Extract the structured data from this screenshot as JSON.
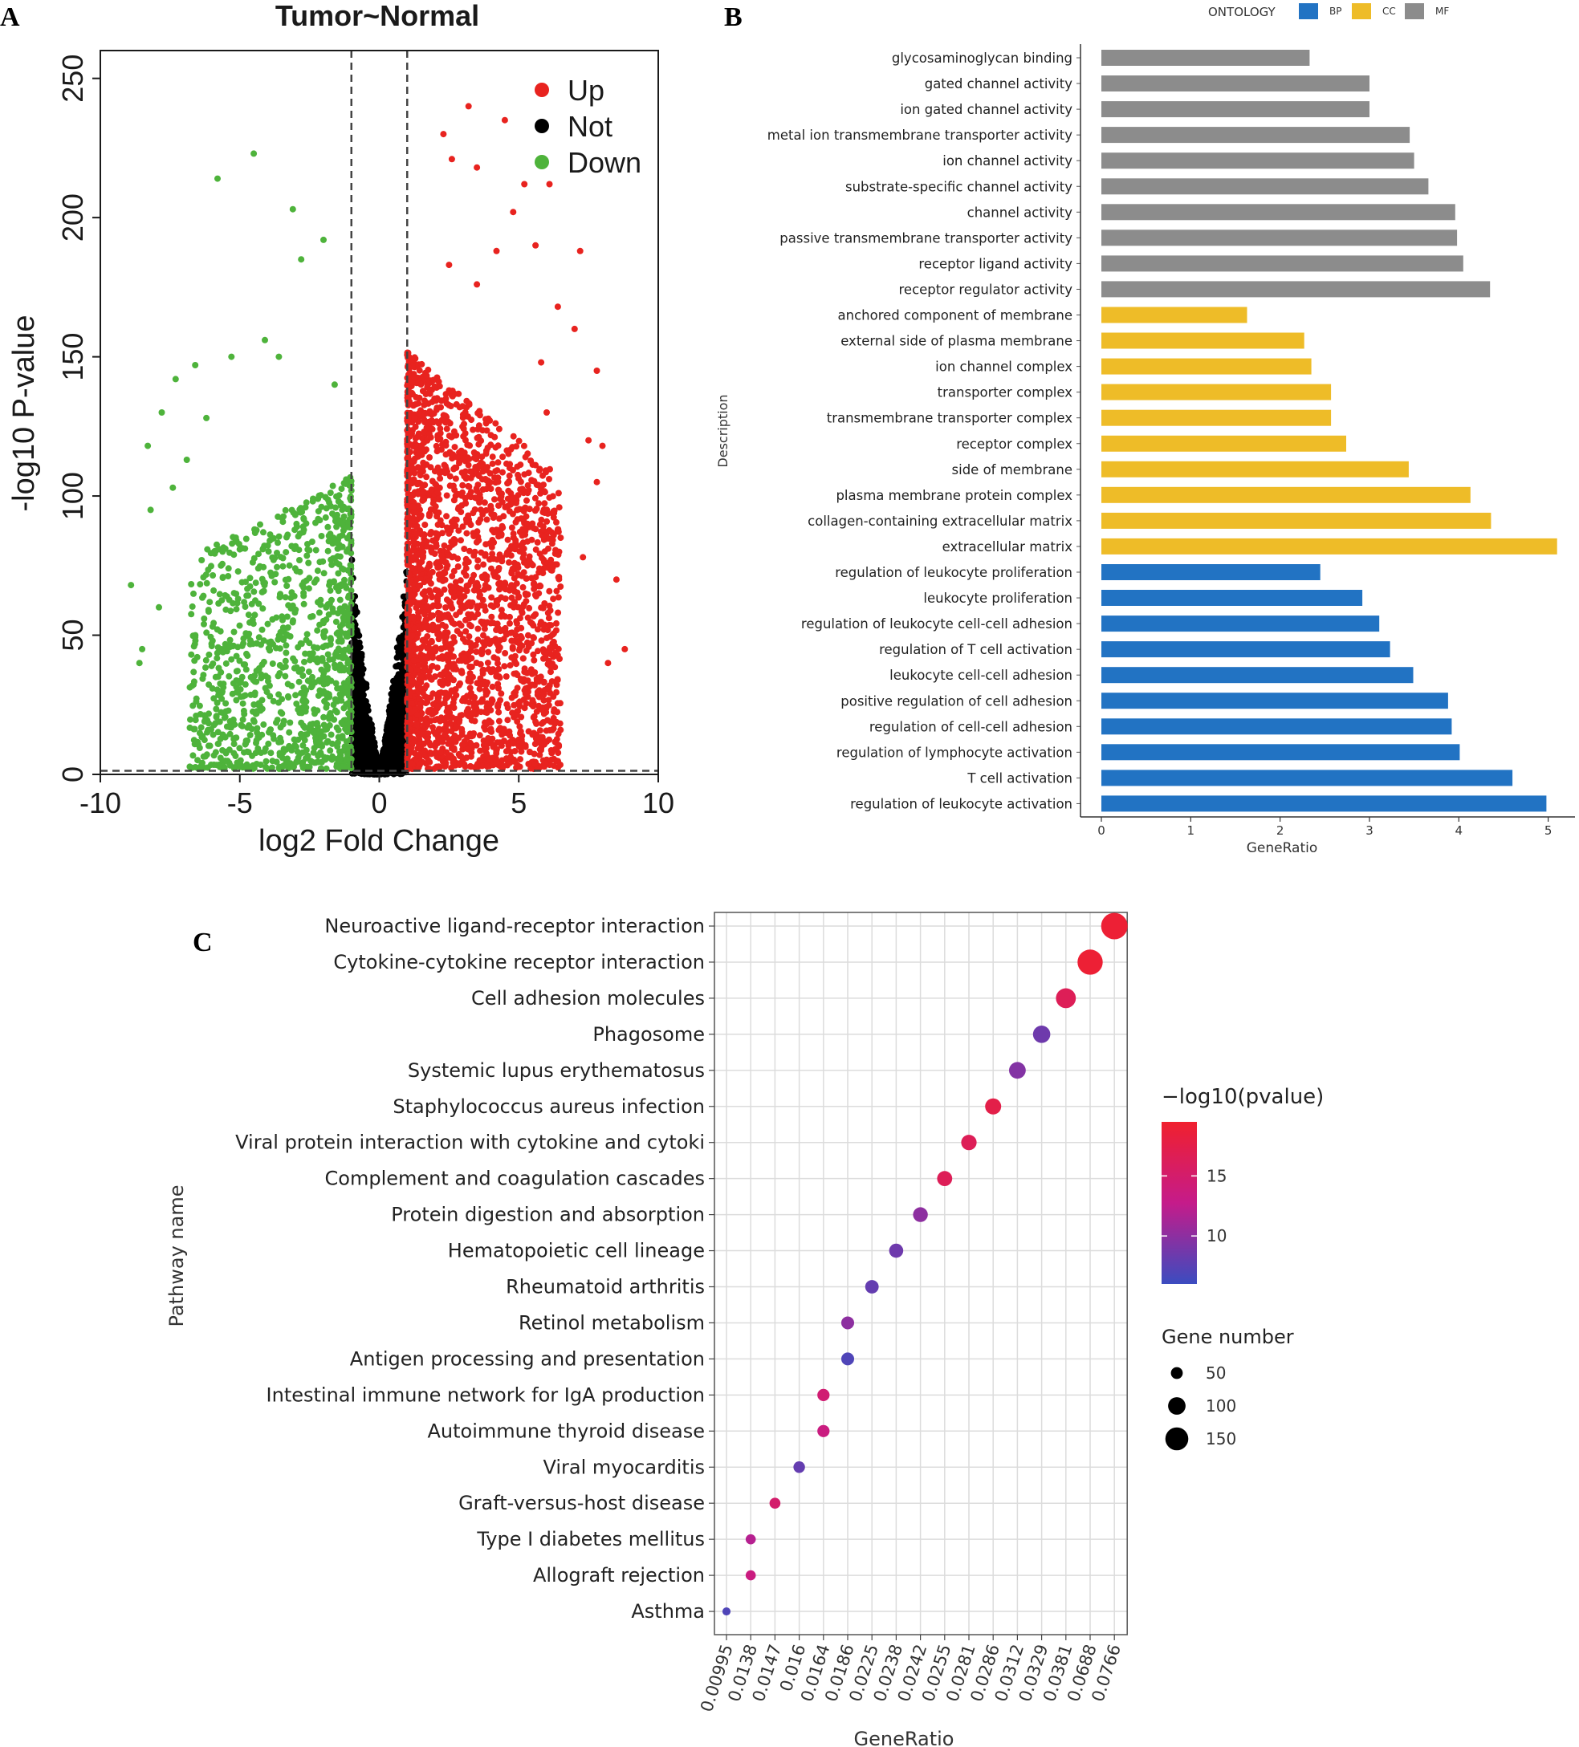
{
  "panels": {
    "a": "A",
    "b": "B",
    "c": "C"
  },
  "chart_data": [
    {
      "type": "scatter",
      "panel": "A",
      "title": "Tumor~Normal",
      "xlabel": "log2 Fold Change",
      "ylabel": "-log10 P-value",
      "xlim": [
        -10,
        10
      ],
      "ylim": [
        0,
        260
      ],
      "xticks": [
        -10,
        -5,
        0,
        5,
        10
      ],
      "yticks": [
        0,
        50,
        100,
        150,
        200,
        250
      ],
      "thresholds": {
        "log2fc": [
          -1,
          1
        ],
        "neg_log10_p": 1.3
      },
      "legend": {
        "position": "top-right",
        "items": [
          {
            "label": "Up",
            "color": "#e8231f"
          },
          {
            "label": "Not",
            "color": "#000000"
          },
          {
            "label": "Down",
            "color": "#4eb33b"
          }
        ]
      },
      "seed": 20231,
      "series_counts": {
        "Up": 2400,
        "Down": 1100,
        "Not": 1600
      },
      "notable_points": {
        "Up": [
          [
            3.2,
            240
          ],
          [
            2.3,
            230
          ],
          [
            4.5,
            235
          ],
          [
            2.6,
            221
          ],
          [
            3.5,
            218
          ],
          [
            5.2,
            212
          ],
          [
            6.1,
            212
          ],
          [
            4.8,
            202
          ],
          [
            5.6,
            190
          ],
          [
            7.2,
            188
          ],
          [
            4.2,
            188
          ],
          [
            2.5,
            183
          ],
          [
            3.5,
            176
          ],
          [
            6.4,
            168
          ],
          [
            7.0,
            160
          ],
          [
            5.8,
            148
          ],
          [
            7.8,
            145
          ],
          [
            6.0,
            130
          ],
          [
            7.5,
            120
          ],
          [
            8.0,
            118
          ],
          [
            7.8,
            105
          ],
          [
            8.5,
            70
          ],
          [
            8.8,
            45
          ],
          [
            8.2,
            40
          ],
          [
            6.5,
            85
          ],
          [
            7.3,
            78
          ]
        ],
        "Down": [
          [
            -4.5,
            223
          ],
          [
            -5.8,
            214
          ],
          [
            -3.1,
            203
          ],
          [
            -2.0,
            192
          ],
          [
            -2.8,
            185
          ],
          [
            -4.1,
            156
          ],
          [
            -6.6,
            147
          ],
          [
            -5.3,
            150
          ],
          [
            -7.3,
            142
          ],
          [
            -7.8,
            130
          ],
          [
            -8.3,
            118
          ],
          [
            -6.9,
            113
          ],
          [
            -7.4,
            103
          ],
          [
            -8.2,
            95
          ],
          [
            -8.9,
            68
          ],
          [
            -8.5,
            45
          ],
          [
            -8.6,
            40
          ],
          [
            -7.9,
            60
          ],
          [
            -6.2,
            128
          ],
          [
            -3.6,
            150
          ],
          [
            -1.6,
            140
          ]
        ]
      },
      "point_colors": {
        "Up": "#e8231f",
        "Not": "#000000",
        "Down": "#4eb33b"
      }
    },
    {
      "type": "bar",
      "panel": "B",
      "orientation": "horizontal",
      "xlabel": "GeneRatio",
      "ylabel": "Description",
      "xlim": [
        0,
        5.3
      ],
      "xticks": [
        0,
        1,
        2,
        3,
        4,
        5
      ],
      "legend_title": "ONTOLOGY",
      "legend": [
        {
          "label": "BP",
          "color": "#2273c3"
        },
        {
          "label": "CC",
          "color": "#eebc28"
        },
        {
          "label": "MF",
          "color": "#8c8c8c"
        }
      ],
      "categories": [
        "glycosaminoglycan binding",
        "gated channel activity",
        "ion gated channel activity",
        "metal ion transmembrane transporter activity",
        "ion channel activity",
        "substrate-specific channel activity",
        "channel activity",
        "passive transmembrane transporter activity",
        "receptor ligand activity",
        "receptor regulator activity",
        "anchored component of membrane",
        "external side of plasma membrane",
        "ion channel complex",
        "transporter complex",
        "transmembrane transporter complex",
        "receptor complex",
        "side of membrane",
        "plasma membrane protein complex",
        "collagen-containing extracellular matrix",
        "extracellular matrix",
        "regulation of leukocyte proliferation",
        "leukocyte proliferation",
        "regulation of leukocyte cell-cell adhesion",
        "regulation of T cell activation",
        "leukocyte cell-cell adhesion",
        "positive regulation of cell adhesion",
        "regulation of cell-cell adhesion",
        "regulation of lymphocyte activation",
        "T cell activation",
        "regulation of leukocyte activation"
      ],
      "values": [
        2.33,
        3.0,
        3.0,
        3.45,
        3.5,
        3.66,
        3.96,
        3.98,
        4.05,
        4.35,
        1.63,
        2.27,
        2.35,
        2.57,
        2.57,
        2.74,
        3.44,
        4.13,
        4.36,
        5.1,
        2.45,
        2.92,
        3.11,
        3.23,
        3.49,
        3.88,
        3.92,
        4.01,
        4.6,
        4.98
      ],
      "groups": [
        "MF",
        "MF",
        "MF",
        "MF",
        "MF",
        "MF",
        "MF",
        "MF",
        "MF",
        "MF",
        "CC",
        "CC",
        "CC",
        "CC",
        "CC",
        "CC",
        "CC",
        "CC",
        "CC",
        "CC",
        "BP",
        "BP",
        "BP",
        "BP",
        "BP",
        "BP",
        "BP",
        "BP",
        "BP",
        "BP"
      ]
    },
    {
      "type": "scatter",
      "subtype": "dot",
      "panel": "C",
      "xlabel": "GeneRatio",
      "ylabel": "Pathway name",
      "x_categories": [
        "0.00995",
        "0.0138",
        "0.0147",
        "0.016",
        "0.0164",
        "0.0186",
        "0.0225",
        "0.0238",
        "0.0242",
        "0.0255",
        "0.0281",
        "0.0286",
        "0.0312",
        "0.0329",
        "0.0381",
        "0.0688",
        "0.0766"
      ],
      "pathways": [
        "Neuroactive ligand-receptor interaction",
        "Cytokine-cytokine receptor interaction",
        "Cell adhesion molecules",
        "Phagosome",
        "Systemic lupus erythematosus",
        "Staphylococcus aureus infection",
        "Viral protein interaction with cytokine and cytoki",
        "Complement and coagulation cascades",
        "Protein digestion and absorption",
        "Hematopoietic cell lineage",
        "Rheumatoid arthritis",
        "Retinol metabolism",
        "Antigen processing and presentation",
        "Intestinal immune network for IgA production",
        "Autoimmune thyroid disease",
        "Viral myocarditis",
        "Graft-versus-host disease",
        "Type I diabetes mellitus",
        "Allograft rejection",
        "Asthma"
      ],
      "x_index": [
        16,
        15,
        14,
        13,
        12,
        11,
        10,
        9,
        8,
        7,
        6,
        5,
        5,
        4,
        4,
        3,
        2,
        1,
        1,
        0
      ],
      "neg_log10_p": [
        19,
        19,
        16.5,
        8.5,
        9.5,
        17.5,
        16.5,
        16.5,
        10,
        8.5,
        8,
        10,
        7,
        14.5,
        13.5,
        8,
        15,
        12,
        13.5,
        7
      ],
      "gene_number": [
        160,
        150,
        110,
        90,
        85,
        80,
        75,
        72,
        70,
        65,
        60,
        55,
        55,
        50,
        50,
        45,
        40,
        35,
        35,
        20
      ],
      "colorbar": {
        "title": "−log10(pvalue)",
        "ticks": [
          10,
          15
        ],
        "range": [
          6,
          19.5
        ],
        "colors": [
          "#3b4cc0",
          "#c51b8a",
          "#f0202e"
        ]
      },
      "size_legend": {
        "title": "Gene number",
        "values": [
          50,
          100,
          150
        ]
      }
    }
  ]
}
